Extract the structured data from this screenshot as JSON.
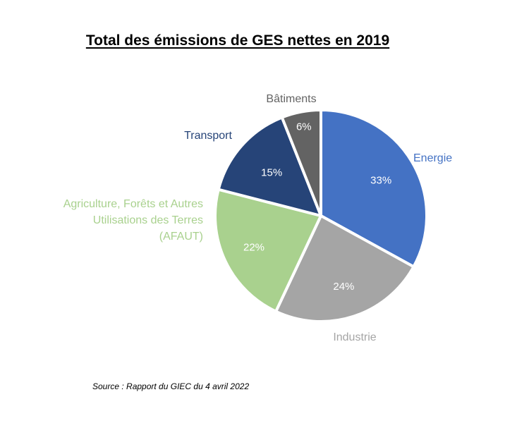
{
  "chart_data": {
    "type": "pie",
    "title": "Total des émissions de GES nettes en 2019",
    "source": "Source : Rapport du GIEC du 4 avril 2022",
    "slices": [
      {
        "label": "Energie",
        "value": 33,
        "value_label": "33%",
        "color": "#4472C4",
        "label_color": "#4472C4",
        "value_color": "#ffffff"
      },
      {
        "label": "Industrie",
        "value": 24,
        "value_label": "24%",
        "color": "#A5A5A5",
        "label_color": "#A5A5A5",
        "value_color": "#ffffff"
      },
      {
        "label": "Agriculture, Forêts et Autres Utilisations des Terres (AFAUT)",
        "label_lines": [
          "Agriculture, Forêts et Autres",
          "Utilisations des Terres",
          "(AFAUT)"
        ],
        "value": 22,
        "value_label": "22%",
        "color": "#A9D18E",
        "label_color": "#A9D18E",
        "value_color": "#ffffff"
      },
      {
        "label": "Transport",
        "value": 15,
        "value_label": "15%",
        "color": "#264478",
        "label_color": "#264478",
        "value_color": "#ffffff"
      },
      {
        "label": "Bâtiments",
        "value": 6,
        "value_label": "6%",
        "color": "#636363",
        "label_color": "#636363",
        "value_color": "#ffffff"
      }
    ]
  }
}
